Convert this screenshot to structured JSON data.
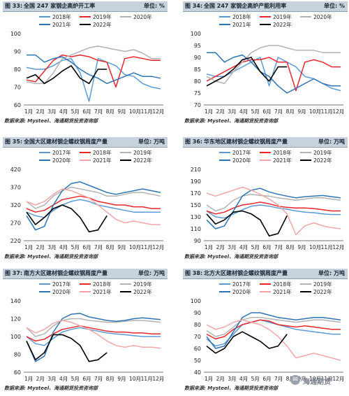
{
  "panels": [
    {
      "number": "图 33:",
      "title": "全国 247 家钢企高炉开工率",
      "unit": "单位: %",
      "source": "数据来源: Mysteel、海通期货投资咨询部",
      "x_labels": [
        "1月",
        "2月",
        "3月",
        "4月",
        "5月",
        "6月",
        "7月",
        "8月",
        "9月",
        "10月",
        "11月",
        "12月"
      ]
    },
    {
      "number": "图 34:",
      "title": "全国 247 家钢企高炉产能利用率",
      "unit": "单位: %",
      "source": "数据来源: Mysteel、海通期货投资咨询部",
      "x_labels": [
        "1月",
        "2月",
        "3月",
        "4月",
        "5月",
        "6月",
        "7月",
        "8月",
        "9月",
        "10月",
        "11月",
        "12月"
      ]
    },
    {
      "number": "图 35:",
      "title": "全国大区建材钢企螺纹钢周度产量",
      "unit": "单位: 万吨",
      "source": "数据来源: Mysteel、海通期货投资咨询部",
      "x_labels": [
        "1月",
        "2月",
        "3月",
        "4月",
        "5月",
        "6月",
        "7月",
        "8月",
        "9月",
        "10月",
        "11月",
        "12月"
      ]
    },
    {
      "number": "图 36:",
      "title": "华东地区建材钢企螺纹钢周度产量",
      "unit": "单位: 万吨",
      "source": "数据来源: Mysteel、海通期货投资咨询部",
      "x_labels": [
        "1月",
        "2月",
        "3月",
        "4月",
        "5月",
        "6月",
        "7月",
        "8月",
        "9月",
        "10月",
        "11月",
        "12月"
      ]
    },
    {
      "number": "图 37:",
      "title": "南方大区建材钢企螺纹钢周度产量",
      "unit": "单位: 万吨",
      "source": "数据来源: Mysteel、海通期货投资咨询部",
      "x_labels": [
        "1月",
        "2月",
        "3月",
        "4月",
        "5月",
        "6月",
        "7月",
        "8月",
        "9月",
        "10月",
        "11月",
        "12月"
      ]
    },
    {
      "number": "图 38:",
      "title": "北方大区建材钢企螺纹钢周度产量",
      "unit": "单位: 万吨",
      "source": "数据来源: Mysteel、海通期货投资咨询部",
      "x_labels": [
        "1月",
        "2月",
        "3月",
        "4月",
        "5月",
        "6月",
        "7月",
        "8月",
        "9月",
        "10月",
        "11月",
        "12月"
      ]
    }
  ],
  "watermark": "海通期货",
  "chart_data": [
    {
      "type": "line",
      "title": "全国 247 家钢企高炉开工率",
      "ylim": [
        60,
        100
      ],
      "yticks": [
        60,
        70,
        80,
        90,
        100
      ],
      "legend_placement": "top",
      "series": [
        {
          "name": "2018年",
          "color": "#5b9bd5",
          "values": [
            81,
            80,
            80,
            82,
            85,
            86,
            78,
            62,
            86,
            84,
            82,
            77,
            76,
            72,
            70,
            69
          ]
        },
        {
          "name": "2019年",
          "color": "#e8262b",
          "values": [
            74,
            73,
            79,
            85,
            88,
            87,
            88,
            87,
            85,
            84,
            70,
            86,
            87,
            86,
            85,
            85
          ]
        },
        {
          "name": "2020年",
          "color": "#b3b3b3",
          "values": [
            73,
            72,
            72,
            78,
            86,
            88,
            90,
            92,
            93,
            92,
            91,
            90,
            91,
            89,
            86,
            86
          ]
        },
        {
          "name": "2021年",
          "color": "#2e75b6",
          "values": [
            88,
            88,
            84,
            86,
            87,
            84,
            80,
            77,
            75,
            72,
            74,
            76,
            78,
            76,
            76,
            75
          ]
        },
        {
          "name": "2022年",
          "color": "#000000",
          "values": [
            75,
            77,
            72,
            75,
            79,
            82,
            75,
            72,
            80,
            80,
            null,
            null,
            null,
            null,
            null,
            null
          ]
        }
      ]
    },
    {
      "type": "line",
      "title": "全国 247 家钢企高炉产能利用率",
      "ylim": [
        70,
        100
      ],
      "yticks": [
        70,
        75,
        80,
        85,
        90,
        95,
        100
      ],
      "legend_placement": "top",
      "series": [
        {
          "name": "2018年",
          "color": "#5b9bd5",
          "values": [
            83,
            82,
            82,
            84,
            86,
            88,
            90,
            78,
            90,
            88,
            86,
            82,
            81,
            79,
            77,
            76
          ]
        },
        {
          "name": "2019年",
          "color": "#e8262b",
          "values": [
            80,
            82,
            84,
            86,
            88,
            89,
            89,
            90,
            88,
            88,
            76,
            88,
            89,
            88,
            86,
            86
          ]
        },
        {
          "name": "2020年",
          "color": "#b3b3b3",
          "values": [
            82,
            80,
            79,
            84,
            88,
            92,
            94,
            95,
            95,
            94,
            93,
            93,
            93,
            92,
            92,
            92
          ]
        },
        {
          "name": "2021年",
          "color": "#2e75b6",
          "values": [
            92,
            92,
            88,
            90,
            91,
            88,
            84,
            82,
            78,
            75,
            77,
            79,
            81,
            79,
            78,
            78
          ]
        },
        {
          "name": "2022年",
          "color": "#000000",
          "values": [
            78,
            80,
            82,
            85,
            89,
            90,
            84,
            80,
            86,
            86,
            null,
            null,
            null,
            null,
            null,
            null
          ]
        }
      ]
    },
    {
      "type": "line",
      "title": "全国大区建材钢企螺纹钢周度产量",
      "ylim": [
        220,
        420
      ],
      "yticks": [
        220,
        270,
        320,
        370,
        420
      ],
      "legend_placement": "top",
      "series": [
        {
          "name": "2017年",
          "color": "#5b9bd5",
          "values": [
            300,
            290,
            285,
            305,
            320,
            330,
            335,
            330,
            320,
            315,
            310,
            305,
            300,
            300,
            300,
            300
          ]
        },
        {
          "name": "2018年",
          "color": "#e8262b",
          "values": [
            310,
            300,
            305,
            320,
            335,
            340,
            345,
            340,
            330,
            325,
            320,
            320,
            315,
            315,
            310,
            310
          ]
        },
        {
          "name": "2019年",
          "color": "#b3b3b3",
          "values": [
            330,
            310,
            320,
            345,
            360,
            370,
            365,
            360,
            355,
            345,
            345,
            350,
            355,
            355,
            350,
            345
          ]
        },
        {
          "name": "2020年",
          "color": "#2e75b6",
          "values": [
            290,
            250,
            260,
            320,
            360,
            380,
            385,
            375,
            365,
            355,
            350,
            355,
            360,
            365,
            360,
            355
          ]
        },
        {
          "name": "2021年",
          "color": "#f4a6a6",
          "values": [
            330,
            320,
            330,
            350,
            365,
            360,
            350,
            340,
            320,
            300,
            280,
            270,
            275,
            270,
            265,
            265
          ]
        },
        {
          "name": "2022年",
          "color": "#000000",
          "values": [
            300,
            265,
            285,
            310,
            320,
            310,
            285,
            245,
            250,
            290,
            null,
            null,
            null,
            null,
            null,
            null
          ]
        }
      ]
    },
    {
      "type": "line",
      "title": "华东地区建材钢企螺纹钢周度产量",
      "ylim": [
        90,
        210
      ],
      "yticks": [
        90,
        110,
        130,
        150,
        170,
        190,
        210
      ],
      "legend_placement": "top",
      "series": [
        {
          "name": "2017年",
          "color": "#5b9bd5",
          "values": [
            140,
            130,
            128,
            135,
            142,
            148,
            150,
            148,
            145,
            143,
            140,
            138,
            137,
            135,
            134,
            134
          ]
        },
        {
          "name": "2018年",
          "color": "#e8262b",
          "values": [
            140,
            135,
            138,
            145,
            150,
            152,
            155,
            152,
            148,
            146,
            145,
            145,
            144,
            142,
            140,
            140
          ]
        },
        {
          "name": "2019年",
          "color": "#b3b3b3",
          "values": [
            150,
            140,
            145,
            158,
            165,
            168,
            166,
            165,
            162,
            160,
            158,
            160,
            162,
            162,
            160,
            158
          ]
        },
        {
          "name": "2020年",
          "color": "#2e75b6",
          "values": [
            125,
            110,
            115,
            140,
            165,
            175,
            178,
            172,
            168,
            165,
            162,
            164,
            165,
            166,
            164,
            162
          ]
        },
        {
          "name": "2021年",
          "color": "#f4a6a6",
          "values": [
            170,
            165,
            170,
            175,
            180,
            175,
            168,
            160,
            150,
            135,
            100,
            115,
            120,
            115,
            112,
            110
          ]
        },
        {
          "name": "2022年",
          "color": "#000000",
          "values": [
            135,
            118,
            125,
            138,
            140,
            135,
            125,
            98,
            102,
            132,
            null,
            null,
            null,
            null,
            null,
            null
          ]
        }
      ]
    },
    {
      "type": "line",
      "title": "南方大区建材钢企螺纹钢周度产量",
      "ylim": [
        60,
        140
      ],
      "yticks": [
        60,
        80,
        100,
        120,
        140
      ],
      "legend_placement": "top",
      "series": [
        {
          "name": "2017年",
          "color": "#5b9bd5",
          "values": [
            100,
            92,
            90,
            98,
            105,
            108,
            110,
            108,
            106,
            104,
            103,
            102,
            101,
            100,
            100,
            100
          ]
        },
        {
          "name": "2018年",
          "color": "#e8262b",
          "values": [
            100,
            95,
            97,
            103,
            108,
            110,
            112,
            110,
            108,
            106,
            105,
            105,
            104,
            104,
            103,
            103
          ]
        },
        {
          "name": "2019年",
          "color": "#b3b3b3",
          "values": [
            110,
            100,
            103,
            112,
            118,
            120,
            120,
            118,
            117,
            116,
            116,
            117,
            118,
            118,
            117,
            116
          ]
        },
        {
          "name": "2020年",
          "color": "#2e75b6",
          "values": [
            95,
            72,
            78,
            105,
            120,
            125,
            126,
            122,
            120,
            118,
            117,
            118,
            120,
            121,
            120,
            119
          ]
        },
        {
          "name": "2021年",
          "color": "#f4a6a6",
          "values": [
            110,
            104,
            108,
            115,
            118,
            116,
            112,
            108,
            102,
            95,
            90,
            88,
            90,
            88,
            88,
            87
          ]
        },
        {
          "name": "2022年",
          "color": "#000000",
          "values": [
            95,
            74,
            82,
            102,
            102,
            98,
            90,
            72,
            74,
            82,
            null,
            null,
            null,
            null,
            null,
            null
          ]
        }
      ]
    },
    {
      "type": "line",
      "title": "北方大区建材钢企螺纹钢周度产量",
      "ylim": [
        40,
        100
      ],
      "yticks": [
        40,
        50,
        60,
        70,
        80,
        90,
        100
      ],
      "legend_placement": "top",
      "series": [
        {
          "name": "2017年",
          "color": "#5b9bd5",
          "values": [
            68,
            62,
            64,
            72,
            80,
            82,
            84,
            82,
            80,
            78,
            76,
            75,
            74,
            73,
            72,
            72
          ]
        },
        {
          "name": "2018年",
          "color": "#e8262b",
          "values": [
            72,
            68,
            70,
            76,
            80,
            82,
            84,
            83,
            80,
            79,
            78,
            79,
            78,
            77,
            76,
            76
          ]
        },
        {
          "name": "2019年",
          "color": "#b3b3b3",
          "values": [
            75,
            70,
            72,
            78,
            84,
            86,
            86,
            85,
            84,
            83,
            82,
            83,
            84,
            84,
            83,
            82
          ]
        },
        {
          "name": "2020年",
          "color": "#2e75b6",
          "values": [
            70,
            60,
            62,
            74,
            86,
            90,
            90,
            88,
            86,
            85,
            84,
            85,
            86,
            86,
            85,
            84
          ]
        },
        {
          "name": "2021年",
          "color": "#f4a6a6",
          "values": [
            80,
            76,
            78,
            82,
            84,
            82,
            80,
            76,
            70,
            62,
            52,
            54,
            56,
            54,
            52,
            50
          ]
        },
        {
          "name": "2022年",
          "color": "#000000",
          "values": [
            62,
            56,
            60,
            70,
            74,
            70,
            66,
            60,
            62,
            72,
            null,
            null,
            null,
            null,
            null,
            null
          ]
        }
      ]
    }
  ]
}
